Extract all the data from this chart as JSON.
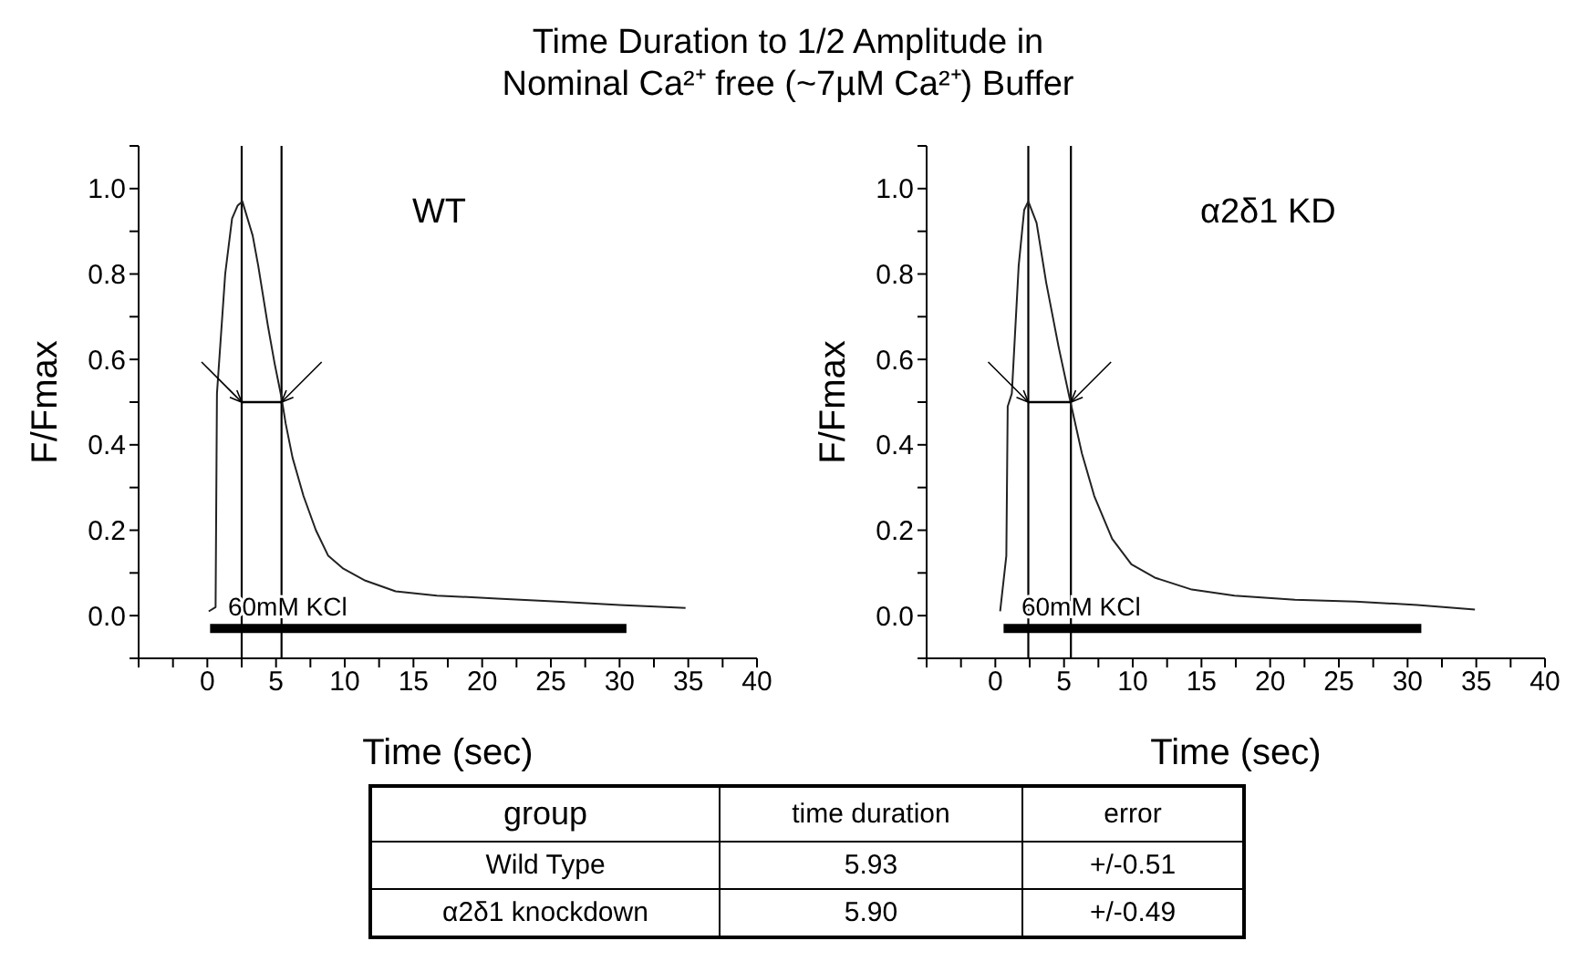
{
  "chart_data": [
    {
      "type": "line",
      "title": "Time Duration to 1/2 Amplitude in",
      "subtitle": "Nominal Ca²⁺ free (~7µM Ca²⁺) Buffer",
      "xlabel": "Time (sec)",
      "ylabel": "F/Fmax",
      "xlim": [
        -5,
        40
      ],
      "xticks": [
        {
          "value": -5,
          "label": null
        },
        {
          "value": -2.5,
          "label": null
        },
        0,
        {
          "value": 2.5,
          "label": null
        },
        5,
        {
          "value": 7.5,
          "label": null
        },
        10,
        {
          "value": 12.5,
          "label": null
        },
        15,
        {
          "value": 17.5,
          "label": null
        },
        20,
        {
          "value": 22.5,
          "label": null
        },
        25,
        {
          "value": 27.5,
          "label": null
        },
        30,
        {
          "value": 32.5,
          "label": null
        },
        35,
        {
          "value": 37.5,
          "label": null
        },
        40
      ],
      "ylim": [
        -0.1,
        1.1
      ],
      "yticks": [
        {
          "value": -0.1,
          "label": null
        },
        {
          "value": 0,
          "label": "0.0"
        },
        {
          "value": 0.1,
          "label": null
        },
        {
          "value": 0.2,
          "label": "0.2"
        },
        {
          "value": 0.3,
          "label": null
        },
        {
          "value": 0.4,
          "label": "0.4"
        },
        {
          "value": 0.5,
          "label": null
        },
        {
          "value": 0.6,
          "label": "0.6"
        },
        {
          "value": 0.7,
          "label": null
        },
        {
          "value": 0.8,
          "label": "0.8"
        },
        {
          "value": 0.9,
          "label": null
        },
        {
          "value": 1,
          "label": "1.0"
        },
        {
          "value": 1.1,
          "label": null
        }
      ],
      "series": [
        {
          "type": "line",
          "color": "#222222",
          "x": [
            0.1,
            0.6,
            0.7,
            1.3,
            1.8,
            2.2,
            2.55,
            3.3,
            3.7,
            4.4,
            4.9,
            5.4,
            5.7,
            6.2,
            7.0,
            7.9,
            8.8,
            9.9,
            11.5,
            13.7,
            16.7,
            21.1,
            25.5,
            30,
            34.8
          ],
          "values": [
            0.01,
            0.02,
            0.52,
            0.8,
            0.93,
            0.96,
            0.97,
            0.89,
            0.82,
            0.68,
            0.59,
            0.51,
            0.45,
            0.37,
            0.28,
            0.2,
            0.14,
            0.11,
            0.082,
            0.057,
            0.047,
            0.04,
            0.033,
            0.025,
            0.018
          ]
        },
        {
          "type": "line",
          "color": "#000000",
          "x": [
            2.5,
            5.4
          ],
          "values": [
            0.5,
            0.5
          ]
        },
        {
          "type": "line",
          "color": "#000000",
          "x": [
            0.2,
            30.5
          ],
          "values": [
            -0.03,
            -0.03
          ]
        }
      ],
      "ref_lines": [
        {
          "axis": "x",
          "value": 2.5,
          "color": "#000000"
        },
        {
          "axis": "x",
          "value": 5.4,
          "color": "#000000"
        }
      ],
      "annotations": [
        "WT",
        {
          "text": "60mM KCl",
          "x": 1.5,
          "y": -0.03
        }
      ]
    },
    {
      "type": "line",
      "xlabel": "Time (sec)",
      "ylabel": "F/Fmax",
      "xlim": [
        -5,
        40
      ],
      "xticks": [
        {
          "value": -5,
          "label": null
        },
        {
          "value": -2.5,
          "label": null
        },
        0,
        {
          "value": 2.5,
          "label": null
        },
        5,
        {
          "value": 7.5,
          "label": null
        },
        10,
        {
          "value": 12.5,
          "label": null
        },
        15,
        {
          "value": 17.5,
          "label": null
        },
        20,
        {
          "value": 22.5,
          "label": null
        },
        25,
        {
          "value": 27.5,
          "label": null
        },
        30,
        {
          "value": 32.5,
          "label": null
        },
        35,
        {
          "value": 37.5,
          "label": null
        },
        40
      ],
      "ylim": [
        -0.1,
        1.1
      ],
      "yticks": [
        {
          "value": -0.1,
          "label": null
        },
        {
          "value": 0,
          "label": "0.0"
        },
        {
          "value": 0.1,
          "label": null
        },
        {
          "value": 0.2,
          "label": "0.2"
        },
        {
          "value": 0.3,
          "label": null
        },
        {
          "value": 0.4,
          "label": "0.4"
        },
        {
          "value": 0.5,
          "label": null
        },
        {
          "value": 0.6,
          "label": "0.6"
        },
        {
          "value": 0.7,
          "label": null
        },
        {
          "value": 0.8,
          "label": "0.8"
        },
        {
          "value": 0.9,
          "label": null
        },
        {
          "value": 1,
          "label": "1.0"
        },
        {
          "value": 1.1,
          "label": null
        }
      ],
      "series": [
        {
          "type": "line",
          "color": "#222222",
          "x": [
            0.35,
            0.8,
            0.9,
            1.2,
            1.7,
            2.1,
            2.4,
            3.0,
            3.7,
            4.6,
            5.4,
            6.3,
            7.2,
            8.5,
            9.9,
            11.6,
            14.3,
            17.4,
            21.8,
            26.2,
            30.7,
            34.9
          ],
          "values": [
            0.01,
            0.14,
            0.49,
            0.52,
            0.82,
            0.95,
            0.97,
            0.92,
            0.78,
            0.63,
            0.51,
            0.38,
            0.28,
            0.18,
            0.12,
            0.089,
            0.061,
            0.047,
            0.037,
            0.033,
            0.025,
            0.014
          ]
        },
        {
          "type": "line",
          "color": "#000000",
          "x": [
            2.4,
            5.5
          ],
          "values": [
            0.5,
            0.5
          ]
        },
        {
          "type": "line",
          "color": "#000000",
          "x": [
            0.6,
            31
          ],
          "values": [
            -0.03,
            -0.03
          ]
        }
      ],
      "ref_lines": [
        {
          "axis": "x",
          "value": 2.4,
          "color": "#000000"
        },
        {
          "axis": "x",
          "value": 5.5,
          "color": "#000000"
        }
      ],
      "annotations": [
        "α2δ1 KD",
        {
          "text": "60mM KCl",
          "x": 1.9,
          "y": -0.03
        }
      ]
    },
    {
      "type": "other",
      "annotations": [
        "group",
        "time duration",
        "error",
        "Wild Type",
        "5.93",
        "+/-0.51",
        "α2δ1 knockdown",
        "5.90",
        "+/-0.49"
      ]
    }
  ]
}
